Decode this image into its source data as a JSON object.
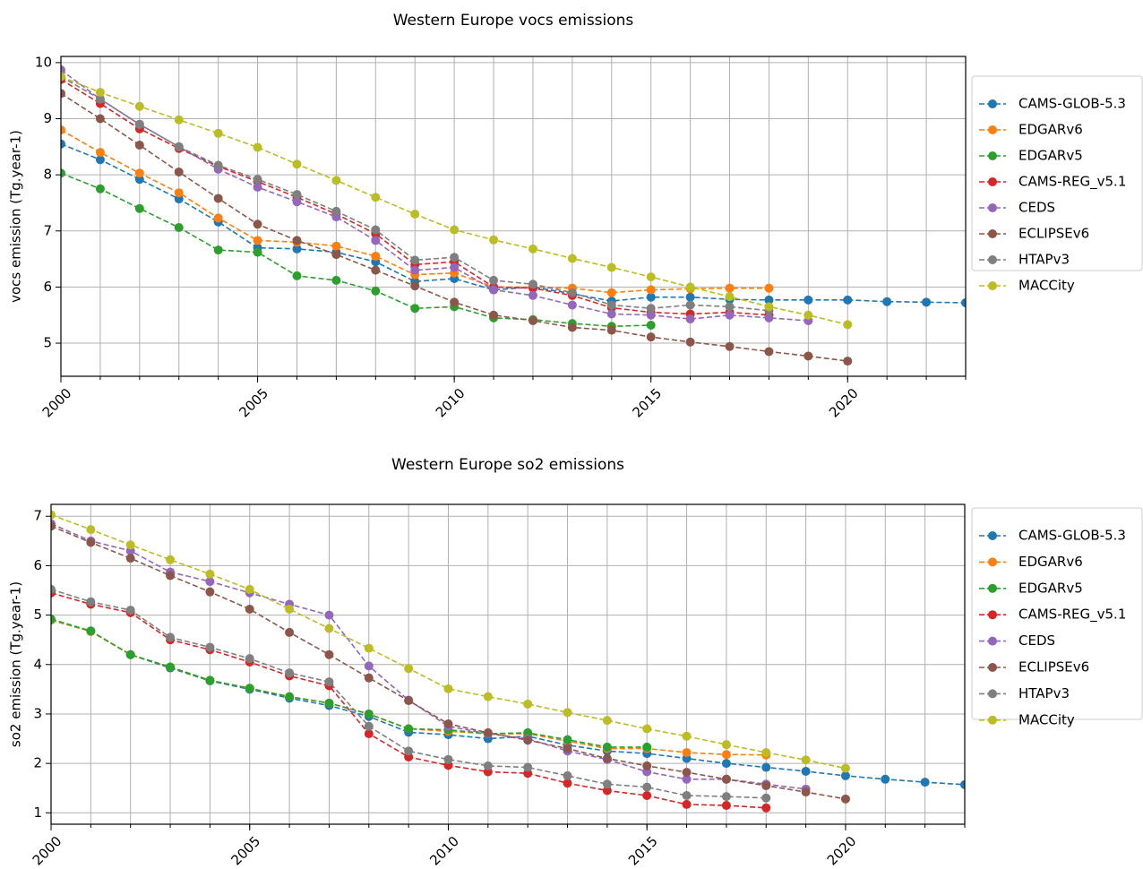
{
  "chart_data": [
    {
      "type": "line",
      "title": "Western Europe vocs emissions",
      "ylabel": "vocs emission (Tg.year-1)",
      "x": [
        2000,
        2001,
        2002,
        2003,
        2004,
        2005,
        2006,
        2007,
        2008,
        2009,
        2010,
        2011,
        2012,
        2013,
        2014,
        2015,
        2016,
        2017,
        2018,
        2019,
        2020,
        2021,
        2022,
        2023
      ],
      "xlim": [
        2000,
        2023
      ],
      "xticks": [
        2000,
        2005,
        2010,
        2015,
        2020
      ],
      "xminorticks": [
        2000,
        2001,
        2002,
        2003,
        2004,
        2005,
        2006,
        2007,
        2008,
        2009,
        2010,
        2011,
        2012,
        2013,
        2014,
        2015,
        2016,
        2017,
        2018,
        2019,
        2020,
        2021,
        2022,
        2023
      ],
      "ylim": [
        4.41,
        10.11
      ],
      "yticks": [
        5,
        6,
        7,
        8,
        9,
        10
      ],
      "grid": true,
      "legend": "outside right",
      "series": [
        {
          "name": "CAMS-GLOB-5.3",
          "color": "#1f77b4",
          "values": [
            8.55,
            8.27,
            7.92,
            7.57,
            7.16,
            6.7,
            6.68,
            6.62,
            6.45,
            6.1,
            6.15,
            5.95,
            6.0,
            5.88,
            5.75,
            5.82,
            5.82,
            5.78,
            5.77,
            5.77,
            5.77,
            5.74,
            5.73,
            5.72
          ]
        },
        {
          "name": "EDGARv6",
          "color": "#ff7f0e",
          "values": [
            8.8,
            8.4,
            8.03,
            7.68,
            7.23,
            6.83,
            6.8,
            6.73,
            6.55,
            6.22,
            6.25,
            6.0,
            6.0,
            5.98,
            5.9,
            5.95,
            5.97,
            5.98,
            5.98,
            null,
            null,
            null,
            null,
            null
          ]
        },
        {
          "name": "EDGARv5",
          "color": "#2ca02c",
          "values": [
            8.03,
            7.75,
            7.4,
            7.06,
            6.66,
            6.62,
            6.2,
            6.12,
            5.93,
            5.62,
            5.65,
            5.45,
            5.42,
            5.35,
            5.3,
            5.32,
            null,
            null,
            null,
            null,
            null,
            null,
            null,
            null
          ]
        },
        {
          "name": "CAMS-REG_v5.1",
          "color": "#d62728",
          "values": [
            9.7,
            9.27,
            8.82,
            8.47,
            8.15,
            7.88,
            7.6,
            7.3,
            6.95,
            6.4,
            6.45,
            6.0,
            5.98,
            5.85,
            5.63,
            5.55,
            5.52,
            5.55,
            5.5,
            null,
            null,
            null,
            null,
            null
          ]
        },
        {
          "name": "CEDS",
          "color": "#9467bd",
          "values": [
            9.87,
            9.35,
            8.9,
            8.5,
            8.1,
            7.78,
            7.52,
            7.25,
            6.83,
            6.3,
            6.35,
            5.95,
            5.85,
            5.68,
            5.52,
            5.5,
            5.43,
            5.5,
            5.45,
            5.4,
            null,
            null,
            null,
            null
          ]
        },
        {
          "name": "ECLIPSEv6",
          "color": "#8c564b",
          "values": [
            9.45,
            9.0,
            8.53,
            8.05,
            7.58,
            7.12,
            6.83,
            6.58,
            6.3,
            6.02,
            5.73,
            5.5,
            5.4,
            5.28,
            5.23,
            5.11,
            5.02,
            4.94,
            4.85,
            4.77,
            4.68,
            null,
            null,
            null
          ]
        },
        {
          "name": "HTAPv3",
          "color": "#7f7f7f",
          "values": [
            9.75,
            9.35,
            8.9,
            8.5,
            8.17,
            7.92,
            7.65,
            7.35,
            7.02,
            6.48,
            6.53,
            6.12,
            6.05,
            5.9,
            5.68,
            5.62,
            5.68,
            5.65,
            5.58,
            null,
            null,
            null,
            null,
            null
          ]
        },
        {
          "name": "MACCity",
          "color": "#bcbd22",
          "values": [
            9.75,
            9.47,
            9.22,
            8.98,
            8.74,
            8.49,
            8.19,
            7.9,
            7.6,
            7.3,
            7.02,
            6.84,
            6.68,
            6.51,
            6.35,
            6.18,
            6.0,
            5.83,
            5.65,
            5.5,
            5.33,
            null,
            null,
            null
          ]
        }
      ]
    },
    {
      "type": "line",
      "title": "Western Europe so2 emissions",
      "ylabel": "so2 emission (Tg.year-1)",
      "x": [
        2000,
        2001,
        2002,
        2003,
        2004,
        2005,
        2006,
        2007,
        2008,
        2009,
        2010,
        2011,
        2012,
        2013,
        2014,
        2015,
        2016,
        2017,
        2018,
        2019,
        2020,
        2021,
        2022,
        2023
      ],
      "xlim": [
        2000,
        2023
      ],
      "xticks": [
        2000,
        2005,
        2010,
        2015,
        2020
      ],
      "xminorticks": [
        2000,
        2001,
        2002,
        2003,
        2004,
        2005,
        2006,
        2007,
        2008,
        2009,
        2010,
        2011,
        2012,
        2013,
        2014,
        2015,
        2016,
        2017,
        2018,
        2019,
        2020,
        2021,
        2022,
        2023
      ],
      "ylim": [
        0.77,
        7.24
      ],
      "yticks": [
        1,
        2,
        3,
        4,
        5,
        6,
        7
      ],
      "grid": true,
      "legend": "outside right",
      "series": [
        {
          "name": "CAMS-GLOB-5.3",
          "color": "#1f77b4",
          "values": [
            4.9,
            4.67,
            4.2,
            3.93,
            3.67,
            3.5,
            3.32,
            3.17,
            2.95,
            2.63,
            2.58,
            2.5,
            2.55,
            2.37,
            2.25,
            2.2,
            2.1,
            2.0,
            1.92,
            1.84,
            1.75,
            1.68,
            1.62,
            1.57
          ]
        },
        {
          "name": "EDGARv6",
          "color": "#ff7f0e",
          "values": [
            4.9,
            4.67,
            4.2,
            3.95,
            3.68,
            3.52,
            3.35,
            3.22,
            3.0,
            2.7,
            2.65,
            2.6,
            2.6,
            2.45,
            2.3,
            2.3,
            2.22,
            2.18,
            2.17,
            null,
            null,
            null,
            null,
            null
          ]
        },
        {
          "name": "EDGARv5",
          "color": "#2ca02c",
          "values": [
            4.92,
            4.68,
            4.2,
            3.95,
            3.68,
            3.52,
            3.35,
            3.22,
            3.0,
            2.7,
            2.68,
            2.6,
            2.62,
            2.48,
            2.33,
            2.33,
            null,
            null,
            null,
            null,
            null,
            null,
            null,
            null
          ]
        },
        {
          "name": "CAMS-REG_v5.1",
          "color": "#d62728",
          "values": [
            5.45,
            5.22,
            5.05,
            4.5,
            4.3,
            4.05,
            3.77,
            3.57,
            2.6,
            2.13,
            1.96,
            1.83,
            1.8,
            1.6,
            1.45,
            1.35,
            1.17,
            1.15,
            1.1,
            null,
            null,
            null,
            null,
            null
          ]
        },
        {
          "name": "CEDS",
          "color": "#9467bd",
          "values": [
            6.85,
            6.5,
            6.3,
            5.87,
            5.68,
            5.45,
            5.22,
            5.0,
            3.97,
            3.28,
            2.75,
            2.6,
            2.5,
            2.25,
            2.08,
            1.83,
            1.68,
            1.68,
            1.58,
            1.48,
            null,
            null,
            null,
            null
          ]
        },
        {
          "name": "ECLIPSEv6",
          "color": "#8c564b",
          "values": [
            6.8,
            6.47,
            6.15,
            5.8,
            5.47,
            5.12,
            4.65,
            4.2,
            3.73,
            3.27,
            2.8,
            2.62,
            2.47,
            2.3,
            2.1,
            1.95,
            1.82,
            1.68,
            1.55,
            1.42,
            1.28,
            null,
            null,
            null
          ]
        },
        {
          "name": "HTAPv3",
          "color": "#7f7f7f",
          "values": [
            5.52,
            5.27,
            5.1,
            4.55,
            4.35,
            4.12,
            3.83,
            3.65,
            2.75,
            2.25,
            2.08,
            1.95,
            1.92,
            1.75,
            1.58,
            1.52,
            1.35,
            1.33,
            1.3,
            null,
            null,
            null,
            null,
            null
          ]
        },
        {
          "name": "MACCity",
          "color": "#bcbd22",
          "values": [
            7.03,
            6.73,
            6.42,
            6.12,
            5.83,
            5.52,
            5.12,
            4.73,
            4.33,
            3.92,
            3.51,
            3.35,
            3.2,
            3.03,
            2.87,
            2.7,
            2.55,
            2.38,
            2.22,
            2.07,
            1.9,
            null,
            null,
            null
          ]
        }
      ]
    }
  ]
}
